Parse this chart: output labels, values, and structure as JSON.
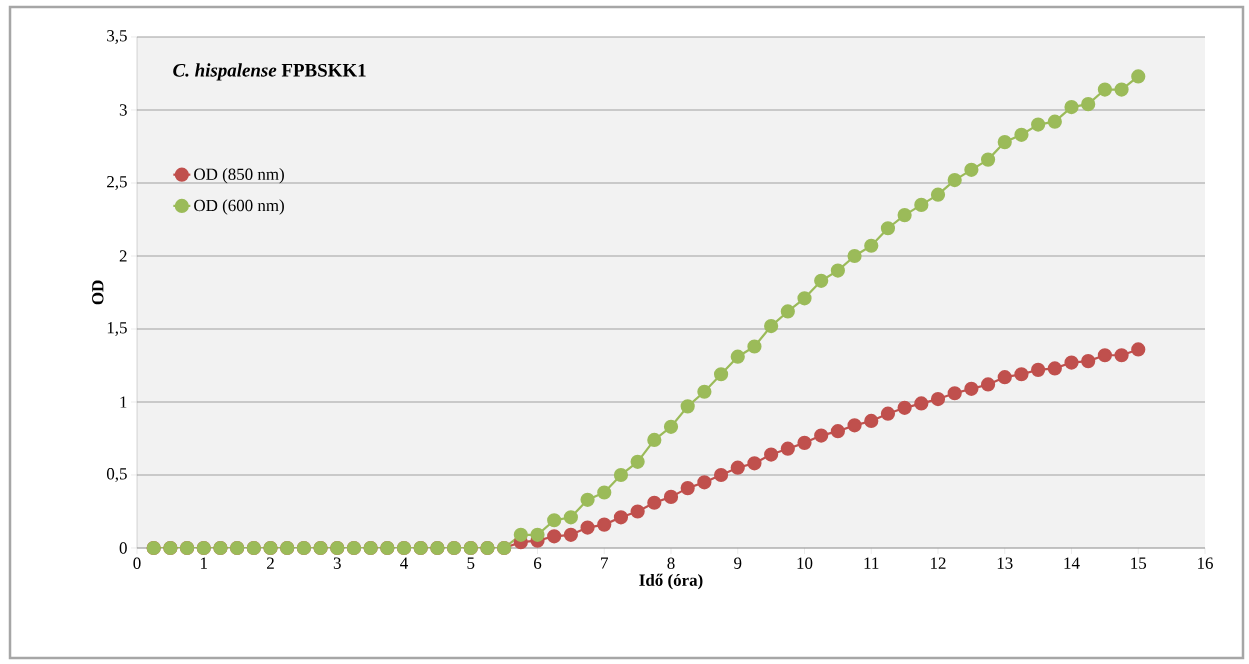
{
  "chart_data": {
    "type": "line",
    "title": "*C. hispalense* FPBSKK1",
    "xlabel": "Idő (óra)",
    "ylabel": "OD",
    "x": [
      0.25,
      0.5,
      0.75,
      1,
      1.25,
      1.5,
      1.75,
      2,
      2.25,
      2.5,
      2.75,
      3,
      3.25,
      3.5,
      3.75,
      4,
      4.25,
      4.5,
      4.75,
      5,
      5.25,
      5.5,
      5.75,
      6,
      6.25,
      6.5,
      6.75,
      7,
      7.25,
      7.5,
      7.75,
      8,
      8.25,
      8.5,
      8.75,
      9,
      9.25,
      9.5,
      9.75,
      10,
      10.25,
      10.5,
      10.75,
      11,
      11.25,
      11.5,
      11.75,
      12,
      12.25,
      12.5,
      12.75,
      13,
      13.25,
      13.5,
      13.75,
      14,
      14.25,
      14.5,
      14.75,
      15
    ],
    "series": [
      {
        "name": "OD (850 nm)",
        "color": "#c0504d",
        "values": [
          0,
          0,
          0,
          0,
          0,
          0,
          0,
          0,
          0,
          0,
          0,
          0,
          0,
          0,
          0,
          0,
          0,
          0,
          0,
          0,
          0,
          0,
          0.04,
          0.05,
          0.08,
          0.09,
          0.14,
          0.16,
          0.21,
          0.25,
          0.31,
          0.35,
          0.41,
          0.45,
          0.5,
          0.55,
          0.58,
          0.64,
          0.68,
          0.72,
          0.77,
          0.8,
          0.84,
          0.87,
          0.92,
          0.96,
          0.99,
          1.02,
          1.06,
          1.09,
          1.12,
          1.17,
          1.19,
          1.22,
          1.23,
          1.27,
          1.28,
          1.32,
          1.32,
          1.36
        ]
      },
      {
        "name": "OD (600 nm)",
        "color": "#9bbb59",
        "values": [
          0,
          0,
          0,
          0,
          0,
          0,
          0,
          0,
          0,
          0,
          0,
          0,
          0,
          0,
          0,
          0,
          0,
          0,
          0,
          0,
          0,
          0,
          0.09,
          0.09,
          0.19,
          0.21,
          0.33,
          0.38,
          0.5,
          0.59,
          0.74,
          0.83,
          0.97,
          1.07,
          1.19,
          1.31,
          1.38,
          1.52,
          1.62,
          1.71,
          1.83,
          1.9,
          2.0,
          2.07,
          2.19,
          2.28,
          2.35,
          2.42,
          2.52,
          2.59,
          2.66,
          2.78,
          2.83,
          2.9,
          2.92,
          3.02,
          3.04,
          3.14,
          3.14,
          3.23
        ]
      }
    ],
    "xlim": [
      0,
      16
    ],
    "xticks": [
      0,
      1,
      2,
      3,
      4,
      5,
      6,
      7,
      8,
      9,
      10,
      11,
      12,
      13,
      14,
      15,
      16
    ],
    "ylim": [
      0,
      3.5
    ],
    "yticks": [
      0,
      {
        "value": 0.5,
        "label": "0,5"
      },
      1,
      {
        "value": 1.5,
        "label": "1,5"
      },
      2,
      {
        "value": 2.5,
        "label": "2,5"
      },
      3,
      {
        "value": 3.5,
        "label": "3,5"
      }
    ],
    "grid": "y",
    "legend": "left",
    "marker": "circle",
    "line_style": "solid"
  }
}
